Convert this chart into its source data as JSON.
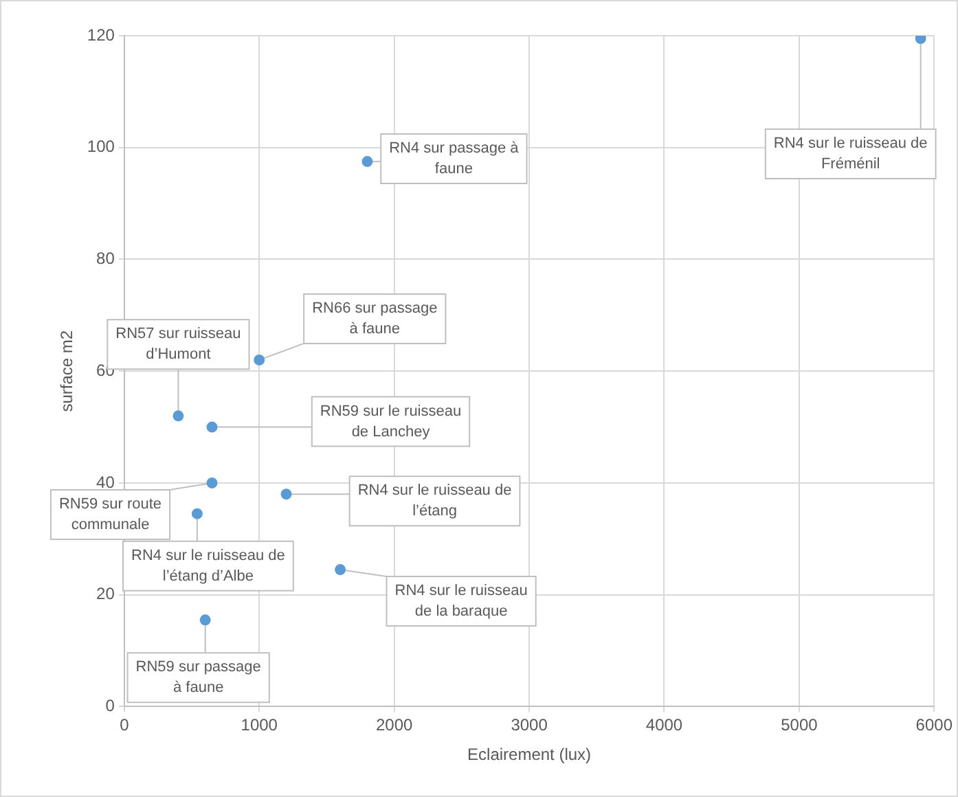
{
  "chart_data": {
    "type": "scatter",
    "xlabel": "Eclairement (lux)",
    "ylabel": "surface m2",
    "x": [
      5900,
      1800,
      1000,
      400,
      650,
      650,
      540,
      1200,
      1600,
      600
    ],
    "values": [
      119.5,
      97.5,
      62,
      52,
      50,
      40,
      34.5,
      38,
      24.5,
      15.5
    ],
    "color": "#5b9bd5",
    "marker": "circle",
    "grid": true,
    "legend": false,
    "xlim": [
      0,
      6000
    ],
    "xticks": [
      0,
      1000,
      2000,
      3000,
      4000,
      5000,
      6000
    ],
    "ylim": [
      0,
      120
    ],
    "yticks": [
      0,
      20,
      40,
      60,
      80,
      100,
      120
    ],
    "annotations": [
      {
        "text": "RN4 sur le ruisseau de Fréménil",
        "x": 5900,
        "y": 119.5
      },
      {
        "text": "RN4 sur passage à faune",
        "x": 1800,
        "y": 97.5
      },
      {
        "text": "RN66 sur passage à faune",
        "x": 1000,
        "y": 62
      },
      {
        "text": "RN57 sur ruisseau d’Humont",
        "x": 400,
        "y": 52
      },
      {
        "text": "RN59 sur le ruisseau de Lanchey",
        "x": 650,
        "y": 50
      },
      {
        "text": "RN59 sur route communale",
        "x": 650,
        "y": 40
      },
      {
        "text": "RN4 sur le ruisseau de l’étang d’Albe",
        "x": 540,
        "y": 34.5
      },
      {
        "text": "RN4 sur le ruisseau de l’étang",
        "x": 1200,
        "y": 38
      },
      {
        "text": "RN4 sur le ruisseau de la baraque",
        "x": 1600,
        "y": 24.5
      },
      {
        "text": "RN59 sur passage à faune",
        "x": 600,
        "y": 15.5
      }
    ]
  }
}
